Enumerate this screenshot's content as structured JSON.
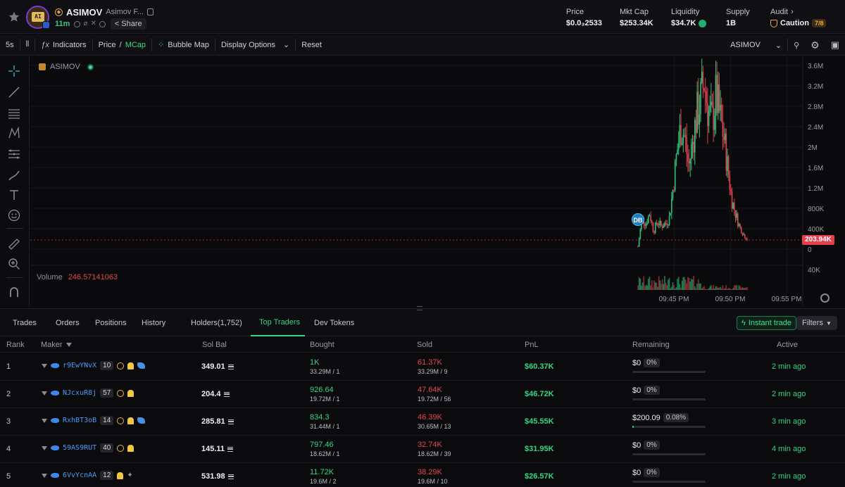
{
  "header": {
    "ticker": "ASIMOV",
    "name": "Asimov F...",
    "avatar_text": "AI",
    "age": "11m",
    "share_label": "Share",
    "stats": [
      {
        "label": "Price",
        "value": "$0.0₃2533"
      },
      {
        "label": "Mkt Cap",
        "value": "$253.34K"
      },
      {
        "label": "Liquidity",
        "value": "$34.7K"
      },
      {
        "label": "Supply",
        "value": "1B"
      }
    ],
    "audit": {
      "label": "Audit",
      "status": "Caution",
      "score": "7/8"
    }
  },
  "toolbar": {
    "interval": "5s",
    "indicators": "Indicators",
    "price": "Price",
    "mcap": "MCap",
    "bubble_map": "Bubble Map",
    "display_options": "Display Options",
    "reset": "Reset",
    "symbol": "ASIMOV"
  },
  "chart": {
    "legend_symbol": "ASIMOV",
    "volume_label": "Volume",
    "volume_value": "246.57141063",
    "last_price_tag": "203.94K",
    "marker": "DB",
    "y_ticks": [
      "3.6M",
      "3.2M",
      "2.8M",
      "2.4M",
      "2M",
      "1.6M",
      "1.2M",
      "800K",
      "400K",
      "0",
      "40K"
    ],
    "x_ticks": [
      "09:45 PM",
      "09:50 PM",
      "09:55 PM"
    ]
  },
  "chart_data": {
    "type": "candlestick",
    "series_name": "ASIMOV",
    "y_axis": {
      "ticks": [
        "3.6M",
        "3.2M",
        "2.8M",
        "2.4M",
        "2M",
        "1.6M",
        "1.2M",
        "800K",
        "400K",
        "0"
      ]
    },
    "x_axis": {
      "ticks": [
        "09:45 PM",
        "09:50 PM",
        "09:55 PM"
      ]
    },
    "path": [
      0.05,
      0.6,
      0.5,
      0.7,
      0.35,
      0.55,
      0.45,
      0.5,
      0.6,
      1.2,
      1.9,
      2.4,
      2.2,
      1.6,
      2.1,
      2.6,
      2.9,
      3.3,
      2.7,
      2.5,
      3.0,
      2.6,
      2.2,
      1.6,
      1.0,
      0.7,
      0.45,
      0.3,
      0.2
    ],
    "last_value": "203.94K"
  },
  "tabs": [
    "Trades",
    "Orders",
    "Positions",
    "History",
    "Holders(1,752)",
    "Top Traders",
    "Dev Tokens"
  ],
  "active_tab": "Top Traders",
  "actions": {
    "instant_trade": "Instant trade",
    "filters": "Filters"
  },
  "table": {
    "columns": [
      "Rank",
      "Maker",
      "Sol Bal",
      "Bought",
      "Sold",
      "PnL",
      "Remaining",
      "Active"
    ],
    "rows": [
      {
        "rank": "1",
        "maker": "r9EwYNvX",
        "count": "10",
        "badges": "tpb",
        "sol": "349.01",
        "bought": "1K",
        "bought_sub": "33.29M / 1",
        "sold": "61.37K",
        "sold_sub": "33.29M / 9",
        "pnl": "$60.37K",
        "remain": "$0",
        "remain_pct": "0%",
        "remain_fill": 0,
        "active": "2 min ago"
      },
      {
        "rank": "2",
        "maker": "NJcxuR8j",
        "count": "57",
        "badges": "tp",
        "sol": "204.4",
        "bought": "926.64",
        "bought_sub": "19.72M / 1",
        "sold": "47.64K",
        "sold_sub": "19.72M / 56",
        "pnl": "$46.72K",
        "remain": "$0",
        "remain_pct": "0%",
        "remain_fill": 0,
        "active": "2 min ago"
      },
      {
        "rank": "3",
        "maker": "RxhBT3oB",
        "count": "14",
        "badges": "tpb",
        "sol": "285.81",
        "bought": "834.3",
        "bought_sub": "31.44M / 1",
        "sold": "46.39K",
        "sold_sub": "30.65M / 13",
        "pnl": "$45.55K",
        "remain": "$200.09",
        "remain_pct": "0.08%",
        "remain_fill": 0.02,
        "active": "3 min ago"
      },
      {
        "rank": "4",
        "maker": "59AS9RUT",
        "count": "40",
        "badges": "tp",
        "sol": "145.11",
        "bought": "797.46",
        "bought_sub": "18.62M / 1",
        "sold": "32.74K",
        "sold_sub": "18.62M / 39",
        "pnl": "$31.95K",
        "remain": "$0",
        "remain_pct": "0%",
        "remain_fill": 0,
        "active": "4 min ago"
      },
      {
        "rank": "5",
        "maker": "6VvYcnAA",
        "count": "12",
        "badges": "ps",
        "sol": "531.98",
        "bought": "11.72K",
        "bought_sub": "19.6M / 2",
        "sold": "38.29K",
        "sold_sub": "19.6M / 10",
        "pnl": "$26.57K",
        "remain": "$0",
        "remain_pct": "0%",
        "remain_fill": 0,
        "active": "2 min ago"
      }
    ]
  },
  "colors": {
    "accent": "#35d683",
    "down": "#e5484d",
    "link": "#4a9cf5",
    "caution": "#eea83c"
  }
}
